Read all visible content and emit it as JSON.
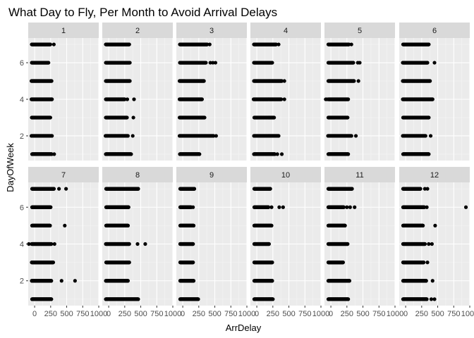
{
  "chart_data": {
    "type": "scatter",
    "title": "What Day to Fly, Per Month to Avoid Arrival Delays",
    "xlabel": "ArrDelay",
    "ylabel": "DayOfWeek",
    "facet_variable": "Month",
    "facet_labels": [
      "1",
      "2",
      "3",
      "4",
      "5",
      "6",
      "7",
      "8",
      "9",
      "10",
      "11",
      "12"
    ],
    "xlim": [
      -100,
      1000
    ],
    "ylim": [
      0.65,
      7.35
    ],
    "x_ticks": [
      0,
      250,
      500,
      750,
      1000
    ],
    "x_tick_labels": [
      "0",
      "250",
      "500",
      "750",
      "1000"
    ],
    "y_ticks": [
      2,
      4,
      6
    ],
    "y_tick_labels": [
      "2",
      "4",
      "6"
    ],
    "grid": true,
    "point_color": "#000000",
    "panel_background": "#ebebeb",
    "strip_background": "#d9d9d9",
    "panels": [
      {
        "month": "1",
        "days": [
          {
            "day": 1,
            "min": -40,
            "max": 265,
            "outliers": [
              305
            ]
          },
          {
            "day": 2,
            "min": -50,
            "max": 270,
            "outliers": []
          },
          {
            "day": 3,
            "min": -45,
            "max": 245,
            "outliers": []
          },
          {
            "day": 4,
            "min": -50,
            "max": 270,
            "outliers": []
          },
          {
            "day": 5,
            "min": -50,
            "max": 265,
            "outliers": []
          },
          {
            "day": 6,
            "min": -45,
            "max": 215,
            "outliers": []
          },
          {
            "day": 7,
            "min": -45,
            "max": 245,
            "outliers": [
              300
            ]
          }
        ]
      },
      {
        "month": "2",
        "days": [
          {
            "day": 1,
            "min": -45,
            "max": 350,
            "outliers": []
          },
          {
            "day": 2,
            "min": -50,
            "max": 300,
            "outliers": [
              375
            ]
          },
          {
            "day": 3,
            "min": -45,
            "max": 285,
            "outliers": [
              385
            ]
          },
          {
            "day": 4,
            "min": -45,
            "max": 250,
            "outliers": [
              290,
              395
            ]
          },
          {
            "day": 5,
            "min": -45,
            "max": 330,
            "outliers": []
          },
          {
            "day": 6,
            "min": -45,
            "max": 330,
            "outliers": []
          },
          {
            "day": 7,
            "min": -45,
            "max": 320,
            "outliers": []
          }
        ]
      },
      {
        "month": "3",
        "days": [
          {
            "day": 1,
            "min": -45,
            "max": 260,
            "outliers": []
          },
          {
            "day": 2,
            "min": -50,
            "max": 480,
            "outliers": [
              520
            ]
          },
          {
            "day": 3,
            "min": -50,
            "max": 340,
            "outliers": []
          },
          {
            "day": 4,
            "min": -50,
            "max": 300,
            "outliers": []
          },
          {
            "day": 5,
            "min": -50,
            "max": 330,
            "outliers": []
          },
          {
            "day": 6,
            "min": -45,
            "max": 360,
            "outliers": [
              430,
              470,
              510
            ]
          },
          {
            "day": 7,
            "min": -45,
            "max": 380,
            "outliers": [
              420
            ]
          }
        ]
      },
      {
        "month": "4",
        "days": [
          {
            "day": 1,
            "min": -45,
            "max": 280,
            "outliers": [
              320,
              390
            ]
          },
          {
            "day": 2,
            "min": -45,
            "max": 340,
            "outliers": []
          },
          {
            "day": 3,
            "min": -40,
            "max": 270,
            "outliers": []
          },
          {
            "day": 4,
            "min": -50,
            "max": 380,
            "outliers": [
              430
            ]
          },
          {
            "day": 5,
            "min": -45,
            "max": 390,
            "outliers": [
              430
            ]
          },
          {
            "day": 6,
            "min": -45,
            "max": 240,
            "outliers": []
          },
          {
            "day": 7,
            "min": -45,
            "max": 300,
            "outliers": [
              340
            ]
          }
        ]
      },
      {
        "month": "5",
        "days": [
          {
            "day": 1,
            "min": -40,
            "max": 270,
            "outliers": []
          },
          {
            "day": 2,
            "min": -45,
            "max": 320,
            "outliers": [
              390
            ]
          },
          {
            "day": 3,
            "min": -40,
            "max": 260,
            "outliers": []
          },
          {
            "day": 4,
            "min": -40,
            "max": 270,
            "outliers": [
              -60,
              -80
            ]
          },
          {
            "day": 5,
            "min": -40,
            "max": 360,
            "outliers": [
              430
            ]
          },
          {
            "day": 6,
            "min": -40,
            "max": 350,
            "outliers": [
              420,
              450
            ]
          },
          {
            "day": 7,
            "min": -40,
            "max": 280,
            "outliers": [
              320
            ]
          }
        ]
      },
      {
        "month": "6",
        "days": [
          {
            "day": 1,
            "min": -40,
            "max": 360,
            "outliers": []
          },
          {
            "day": 2,
            "min": -45,
            "max": 310,
            "outliers": [
              390
            ]
          },
          {
            "day": 3,
            "min": -40,
            "max": 360,
            "outliers": []
          },
          {
            "day": 4,
            "min": -45,
            "max": 420,
            "outliers": []
          },
          {
            "day": 5,
            "min": -45,
            "max": 380,
            "outliers": []
          },
          {
            "day": 6,
            "min": -45,
            "max": 340,
            "outliers": [
              450
            ]
          },
          {
            "day": 7,
            "min": -40,
            "max": 360,
            "outliers": []
          }
        ]
      },
      {
        "month": "7",
        "days": [
          {
            "day": 1,
            "min": -40,
            "max": 260,
            "outliers": []
          },
          {
            "day": 2,
            "min": -45,
            "max": 260,
            "outliers": [
              420,
              630
            ]
          },
          {
            "day": 3,
            "min": -45,
            "max": 290,
            "outliers": []
          },
          {
            "day": 4,
            "min": -45,
            "max": 260,
            "outliers": [
              -90,
              310
            ]
          },
          {
            "day": 5,
            "min": -40,
            "max": 240,
            "outliers": [
              470
            ]
          },
          {
            "day": 6,
            "min": -40,
            "max": 250,
            "outliers": []
          },
          {
            "day": 7,
            "min": -40,
            "max": 300,
            "outliers": [
              380,
              490
            ]
          }
        ]
      },
      {
        "month": "8",
        "days": [
          {
            "day": 1,
            "min": -45,
            "max": 460,
            "outliers": []
          },
          {
            "day": 2,
            "min": -45,
            "max": 300,
            "outliers": []
          },
          {
            "day": 3,
            "min": -40,
            "max": 320,
            "outliers": []
          },
          {
            "day": 4,
            "min": -45,
            "max": 320,
            "outliers": [
              450,
              570
            ]
          },
          {
            "day": 5,
            "min": -40,
            "max": 300,
            "outliers": []
          },
          {
            "day": 6,
            "min": -40,
            "max": 310,
            "outliers": []
          },
          {
            "day": 7,
            "min": -40,
            "max": 460,
            "outliers": []
          }
        ]
      },
      {
        "month": "9",
        "days": [
          {
            "day": 1,
            "min": -40,
            "max": 240,
            "outliers": []
          },
          {
            "day": 2,
            "min": -40,
            "max": 170,
            "outliers": []
          },
          {
            "day": 3,
            "min": -40,
            "max": 160,
            "outliers": []
          },
          {
            "day": 4,
            "min": -40,
            "max": 160,
            "outliers": []
          },
          {
            "day": 5,
            "min": -40,
            "max": 170,
            "outliers": []
          },
          {
            "day": 6,
            "min": -40,
            "max": 130,
            "outliers": [
              160
            ]
          },
          {
            "day": 7,
            "min": -40,
            "max": 180,
            "outliers": []
          }
        ]
      },
      {
        "month": "10",
        "days": [
          {
            "day": 1,
            "min": -40,
            "max": 250,
            "outliers": []
          },
          {
            "day": 2,
            "min": -40,
            "max": 240,
            "outliers": []
          },
          {
            "day": 3,
            "min": -40,
            "max": 240,
            "outliers": []
          },
          {
            "day": 4,
            "min": -40,
            "max": 190,
            "outliers": []
          },
          {
            "day": 5,
            "min": -40,
            "max": 230,
            "outliers": []
          },
          {
            "day": 6,
            "min": -40,
            "max": 180,
            "outliers": [
              230,
              350,
              410
            ]
          },
          {
            "day": 7,
            "min": -40,
            "max": 210,
            "outliers": []
          }
        ]
      },
      {
        "month": "11",
        "days": [
          {
            "day": 1,
            "min": -40,
            "max": 270,
            "outliers": []
          },
          {
            "day": 2,
            "min": -40,
            "max": 290,
            "outliers": []
          },
          {
            "day": 3,
            "min": -40,
            "max": 190,
            "outliers": []
          },
          {
            "day": 4,
            "min": -40,
            "max": 260,
            "outliers": []
          },
          {
            "day": 5,
            "min": -40,
            "max": 220,
            "outliers": []
          },
          {
            "day": 6,
            "min": -40,
            "max": 200,
            "outliers": [
              250,
              300,
              370
            ]
          },
          {
            "day": 7,
            "min": -40,
            "max": 330,
            "outliers": []
          }
        ]
      },
      {
        "month": "12",
        "days": [
          {
            "day": 1,
            "min": -40,
            "max": 330,
            "outliers": [
              400,
              450
            ]
          },
          {
            "day": 2,
            "min": -40,
            "max": 320,
            "outliers": [
              420
            ]
          },
          {
            "day": 3,
            "min": -40,
            "max": 280,
            "outliers": [
              340
            ]
          },
          {
            "day": 4,
            "min": -40,
            "max": 300,
            "outliers": [
              360,
              410
            ]
          },
          {
            "day": 5,
            "min": -40,
            "max": 270,
            "outliers": [
              460
            ]
          },
          {
            "day": 6,
            "min": -40,
            "max": 290,
            "outliers": [
              330,
              940
            ]
          },
          {
            "day": 7,
            "min": -40,
            "max": 230,
            "outliers": [
              300,
              340
            ]
          }
        ]
      }
    ]
  }
}
